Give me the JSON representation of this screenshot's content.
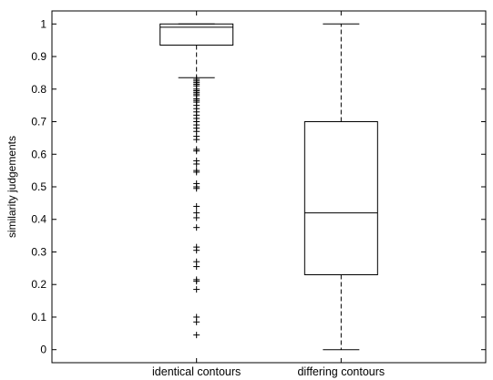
{
  "chart_data": {
    "type": "boxplot",
    "ylabel": "similarity judgements",
    "xlabel": "",
    "ylim": [
      -0.04,
      1.04
    ],
    "yticks": [
      0,
      0.1,
      0.2,
      0.3,
      0.4,
      0.5,
      0.6,
      0.7,
      0.8,
      0.9,
      1
    ],
    "ytick_labels": [
      "0",
      "0.1",
      "0.2",
      "0.3",
      "0.4",
      "0.5",
      "0.6",
      "0.7",
      "0.8",
      "0.9",
      "1"
    ],
    "grid": false,
    "categories": [
      "identical contours",
      "differing contours"
    ],
    "boxes": [
      {
        "category": "identical contours",
        "whisker_low": 0.835,
        "q1": 0.935,
        "median": 0.99,
        "q3": 1.0,
        "whisker_high": 1.0,
        "outliers": [
          0.83,
          0.825,
          0.82,
          0.815,
          0.81,
          0.8,
          0.795,
          0.79,
          0.785,
          0.78,
          0.77,
          0.765,
          0.76,
          0.75,
          0.74,
          0.73,
          0.72,
          0.71,
          0.7,
          0.69,
          0.68,
          0.67,
          0.655,
          0.645,
          0.615,
          0.61,
          0.58,
          0.57,
          0.55,
          0.545,
          0.51,
          0.5,
          0.495,
          0.44,
          0.42,
          0.405,
          0.375,
          0.315,
          0.305,
          0.27,
          0.255,
          0.215,
          0.21,
          0.185,
          0.1,
          0.085,
          0.045
        ]
      },
      {
        "category": "differing contours",
        "whisker_low": 0.0,
        "q1": 0.23,
        "median": 0.42,
        "q3": 0.7,
        "whisker_high": 1.0,
        "outliers": []
      }
    ]
  }
}
